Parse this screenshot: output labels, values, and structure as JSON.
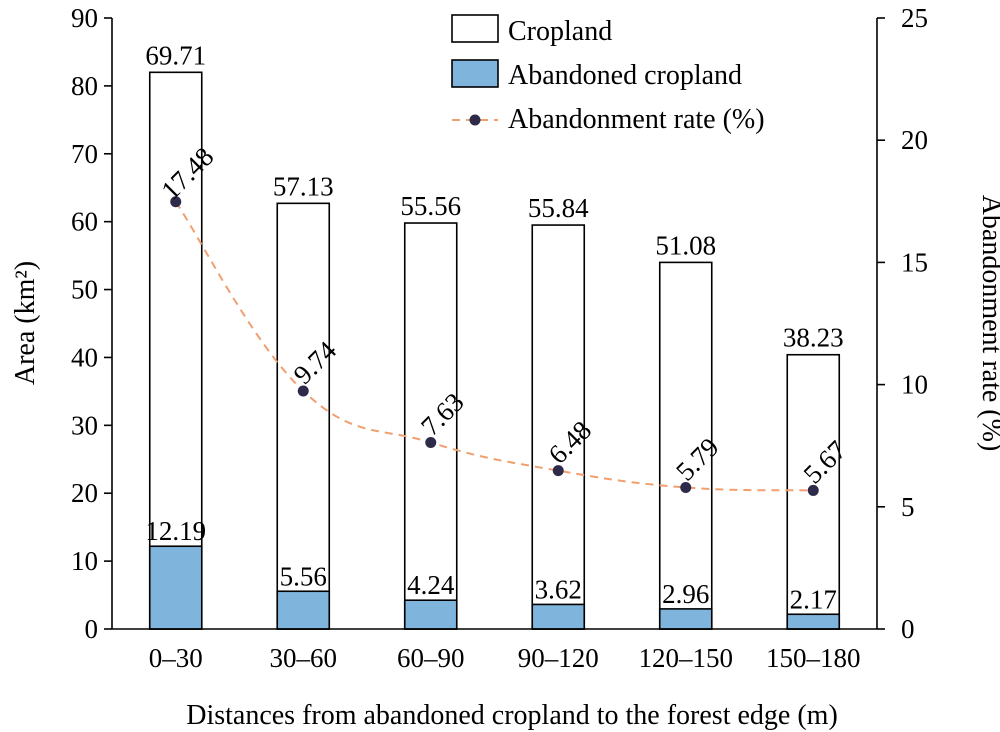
{
  "chart_data": {
    "type": "bar",
    "categories": [
      "0–30",
      "30–60",
      "60–90",
      "90–120",
      "120–150",
      "150–180"
    ],
    "series": [
      {
        "name": "Cropland",
        "kind": "bar",
        "axis": "left",
        "values": [
          82.0,
          62.7,
          59.8,
          59.5,
          54.0,
          40.4
        ],
        "labels": [
          "69.71",
          "57.13",
          "55.56",
          "55.84",
          "51.08",
          "38.23"
        ],
        "fill": "#ffffff",
        "stroke": "#000000"
      },
      {
        "name": "Abandoned cropland",
        "kind": "bar",
        "axis": "left",
        "values": [
          12.19,
          5.56,
          4.24,
          3.62,
          2.96,
          2.17
        ],
        "labels": [
          "12.19",
          "5.56",
          "4.24",
          "3.62",
          "2.96",
          "2.17"
        ],
        "fill": "#7fb4dd",
        "stroke": "#000000"
      },
      {
        "name": "Abandonment rate (%)",
        "kind": "line",
        "axis": "right",
        "values": [
          17.48,
          9.74,
          7.63,
          6.48,
          5.79,
          5.67
        ],
        "labels": [
          "17.48",
          "9.74",
          "7.63",
          "6.48",
          "5.79",
          "5.67"
        ],
        "line_color": "#f0a070",
        "marker_color": "#2e2a4a"
      }
    ],
    "xlabel": "Distances from abandoned cropland to the forest edge (m)",
    "ylabel": "Area (km²)",
    "y2label": "Abandonment rate (%)",
    "ylim": [
      0,
      90
    ],
    "y2lim": [
      0,
      25
    ],
    "yticks": [
      "0",
      "10",
      "20",
      "30",
      "40",
      "50",
      "60",
      "70",
      "80",
      "90"
    ],
    "y2ticks": [
      "0",
      "5",
      "10",
      "15",
      "20",
      "25"
    ],
    "legend_position": "top-right",
    "grid": false
  }
}
